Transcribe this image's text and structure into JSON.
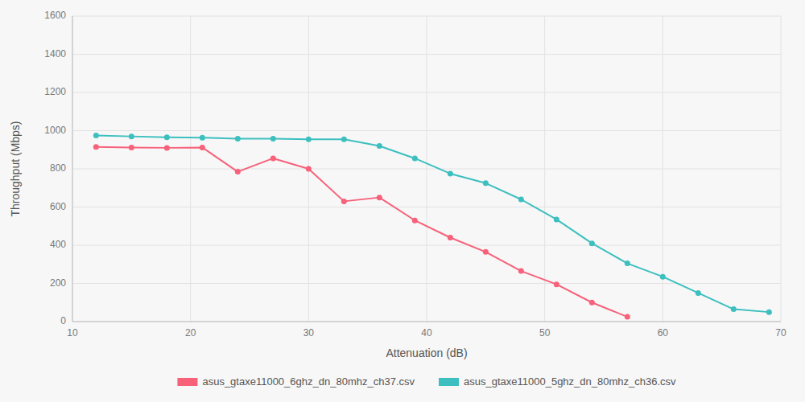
{
  "chart_data": {
    "type": "line",
    "xlabel": "Attenuation (dB)",
    "ylabel": "Throughput (Mbps)",
    "xlim": [
      10,
      70
    ],
    "ylim": [
      0,
      1600
    ],
    "xticks": [
      10,
      20,
      30,
      40,
      50,
      60,
      70
    ],
    "yticks": [
      0,
      200,
      400,
      600,
      800,
      1000,
      1200,
      1400,
      1600
    ],
    "grid": true,
    "legend": "bottom",
    "marker": "circle",
    "series": [
      {
        "name": "asus_gtaxe11000_6ghz_dn_80mhz_ch37.csv",
        "color": "#f7617a",
        "x": [
          12,
          15,
          18,
          21,
          24,
          27,
          30,
          33,
          36,
          39,
          42,
          45,
          48,
          51,
          54,
          57
        ],
        "values": [
          915,
          912,
          910,
          912,
          785,
          855,
          800,
          630,
          650,
          530,
          440,
          365,
          265,
          195,
          100,
          25
        ]
      },
      {
        "name": "asus_gtaxe11000_5ghz_dn_80mhz_ch36.csv",
        "color": "#3dbfbf",
        "x": [
          12,
          15,
          18,
          21,
          24,
          27,
          30,
          33,
          36,
          39,
          42,
          45,
          48,
          51,
          54,
          57,
          60,
          63,
          66,
          69
        ],
        "values": [
          975,
          970,
          965,
          963,
          958,
          958,
          955,
          955,
          920,
          855,
          775,
          725,
          640,
          535,
          410,
          305,
          235,
          150,
          65,
          50
        ]
      }
    ]
  }
}
